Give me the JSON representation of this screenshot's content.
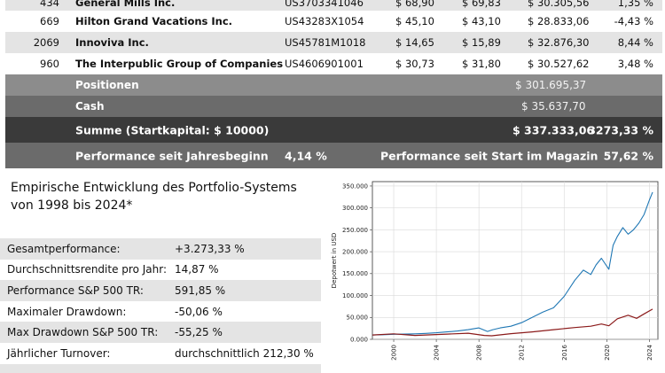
{
  "holdings": [
    {
      "id": "434",
      "name": "General Mills Inc.",
      "isin": "US3703341046",
      "price_buy": "$ 68,90",
      "price_now": "$ 69,83",
      "value": "$ 30.305,56",
      "change": "1,35 %"
    },
    {
      "id": "669",
      "name": "Hilton Grand Vacations Inc.",
      "isin": "US43283X1054",
      "price_buy": "$ 45,10",
      "price_now": "$ 43,10",
      "value": "$ 28.833,06",
      "change": "-4,43 %"
    },
    {
      "id": "2069",
      "name": "Innoviva Inc.",
      "isin": "US45781M1018",
      "price_buy": "$ 14,65",
      "price_now": "$ 15,89",
      "value": "$ 32.876,30",
      "change": "8,44 %"
    },
    {
      "id": "960",
      "name": "The Interpublic Group of Companies",
      "isin": "US4606901001",
      "price_buy": "$ 30,73",
      "price_now": "$ 31,80",
      "value": "$ 30.527,62",
      "change": "3,48 %"
    }
  ],
  "summary": {
    "positions_label": "Positionen",
    "positions_value": "$ 301.695,37",
    "cash_label": "Cash",
    "cash_value": "$ 35.637,70",
    "total_label": "Summe (Startkapital: $ 10000)",
    "total_value": "$ 337.333,06",
    "total_pct": "3273,33 %",
    "perf_ytd_label": "Performance seit Jahresbeginn",
    "perf_ytd_value": "4,14 %",
    "perf_start_label": "Performance seit Start im Magazin",
    "perf_start_value": "57,62 %"
  },
  "panel": {
    "title_line1": "Empirische Entwicklung des Portfolio-Systems",
    "title_line2": "von 1998 bis 2024*"
  },
  "stats": [
    {
      "label": "Gesamtperformance:",
      "value": "+3.273,33 %"
    },
    {
      "label": "Durchschnittsrendite pro Jahr:",
      "value": "14,87 %"
    },
    {
      "label": "Performance S&P 500 TR:",
      "value": "591,85 %"
    },
    {
      "label": "Maximaler Drawdown:",
      "value": "-50,06 %"
    },
    {
      "label": "Max Drawdown S&P 500 TR:",
      "value": "-55,25 %"
    },
    {
      "label": "Jährlicher Turnover:",
      "value": "durchschnittlich 212,30 %"
    }
  ],
  "chart_data": {
    "type": "line",
    "title": "",
    "xlabel": "",
    "ylabel": "Depotwert in USD",
    "xlim": [
      1998,
      2024.8
    ],
    "ylim": [
      0,
      360000
    ],
    "x_ticks": [
      "2000",
      "2004",
      "2008",
      "2012",
      "2016",
      "2020",
      "2024"
    ],
    "y_ticks": [
      "0.000",
      "50.000",
      "100.000",
      "150.000",
      "200.000",
      "250.000",
      "300.000",
      "350.000"
    ],
    "y_tick_values": [
      0,
      50000,
      100000,
      150000,
      200000,
      250000,
      300000,
      350000
    ],
    "grid": true,
    "series": [
      {
        "color": "#1f77b4",
        "x": [
          1998.0,
          1999.0,
          2000.0,
          2001.0,
          2002.0,
          2003.0,
          2004.0,
          2005.0,
          2006.0,
          2007.0,
          2008.0,
          2008.8,
          2009.3,
          2010.0,
          2011.0,
          2012.0,
          2013.0,
          2014.0,
          2015.0,
          2016.0,
          2017.0,
          2017.8,
          2018.5,
          2019.0,
          2019.5,
          2020.2,
          2020.6,
          2021.0,
          2021.5,
          2022.0,
          2022.5,
          2023.0,
          2023.5,
          2024.0,
          2024.3
        ],
        "y": [
          10000,
          10500,
          11500,
          12000,
          12500,
          13500,
          15000,
          17000,
          19000,
          22000,
          26000,
          18000,
          22000,
          26000,
          30000,
          38000,
          50000,
          62000,
          72000,
          98000,
          135000,
          158000,
          148000,
          170000,
          185000,
          160000,
          215000,
          235000,
          255000,
          240000,
          250000,
          265000,
          285000,
          318000,
          336000
        ]
      },
      {
        "color": "#8b1a1a",
        "x": [
          1998.0,
          2000.0,
          2002.0,
          2003.0,
          2005.0,
          2007.0,
          2008.5,
          2009.2,
          2011.0,
          2013.0,
          2015.0,
          2017.0,
          2018.5,
          2019.5,
          2020.2,
          2021.0,
          2022.0,
          2022.8,
          2023.5,
          2024.3
        ],
        "y": [
          10000,
          12500,
          9000,
          10000,
          12000,
          14000,
          9000,
          8000,
          13000,
          17000,
          22000,
          27000,
          30000,
          35000,
          31000,
          47000,
          55000,
          48000,
          58000,
          69000
        ]
      }
    ]
  }
}
